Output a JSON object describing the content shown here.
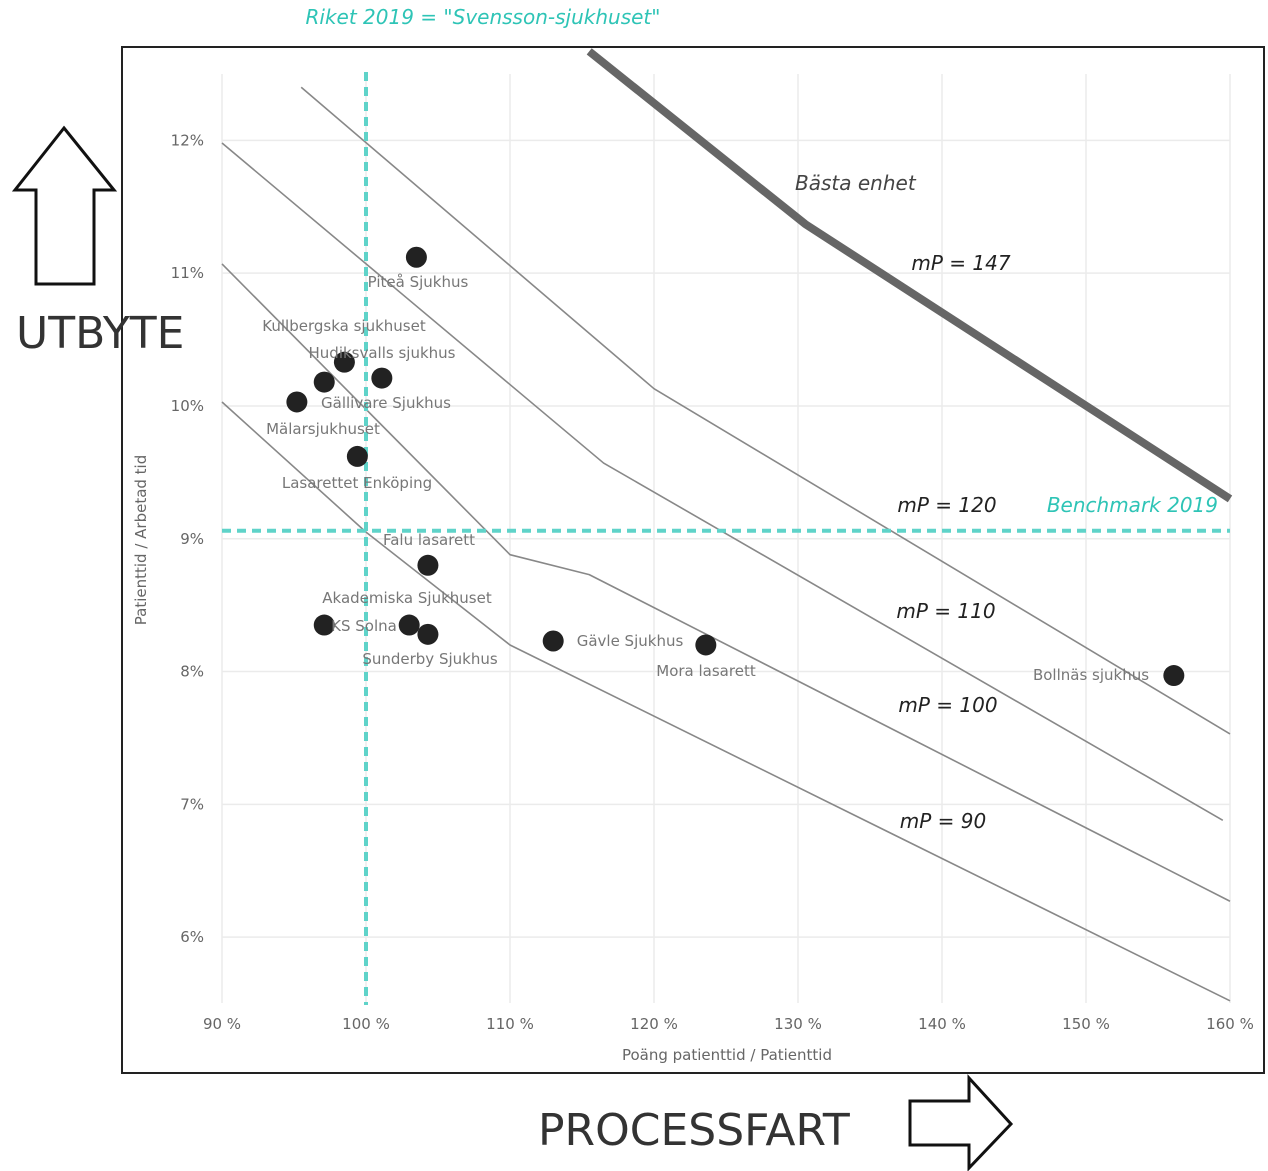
{
  "chart_data": {
    "type": "scatter",
    "xlabel": "Poäng patienttid / Patienttid",
    "ylabel": "Patienttid / Arbetad tid",
    "xlim": [
      90,
      160
    ],
    "ylim": [
      5.5,
      12.5
    ],
    "x_ticks": [
      90,
      100,
      110,
      120,
      130,
      140,
      150,
      160
    ],
    "x_tick_labels": [
      "90 %",
      "100 %",
      "110 %",
      "120 %",
      "130 %",
      "140 %",
      "150 %",
      "160 %"
    ],
    "y_ticks": [
      6,
      7,
      8,
      9,
      10,
      11,
      12
    ],
    "y_tick_labels": [
      "6%",
      "7%",
      "8%",
      "9%",
      "10%",
      "11%",
      "12%"
    ],
    "grid": true,
    "points": [
      {
        "name": "Piteå Sjukhus",
        "x": 103.5,
        "y": 11.12
      },
      {
        "name": "Kullbergska sjukhuset",
        "x": 98.5,
        "y": 10.33
      },
      {
        "name": "Hudiksvalls sjukhus",
        "x": 101.1,
        "y": 10.21
      },
      {
        "name": "Gällivare Sjukhus",
        "x": 97.1,
        "y": 10.18
      },
      {
        "name": "Mälarsjukhuset",
        "x": 95.2,
        "y": 10.03
      },
      {
        "name": "Lasarettet Enköping",
        "x": 99.4,
        "y": 9.62
      },
      {
        "name": "Falu lasarett",
        "x": 104.3,
        "y": 8.8
      },
      {
        "name": "Akademiska Sjukhuset",
        "x": 103.0,
        "y": 8.35
      },
      {
        "name": "KS Solna",
        "x": 97.1,
        "y": 8.35
      },
      {
        "name": "Sunderby Sjukhus",
        "x": 104.3,
        "y": 8.28
      },
      {
        "name": "Gävle Sjukhus",
        "x": 113.0,
        "y": 8.23
      },
      {
        "name": "Mora lasarett",
        "x": 123.6,
        "y": 8.2
      },
      {
        "name": "Bollnäs sjukhus",
        "x": 156.1,
        "y": 7.97
      }
    ],
    "reference_lines": {
      "vertical": {
        "x": 100,
        "label": "Riket 2019 = \"Svensson-sjukhuset\"",
        "color": "#5fd3c9"
      },
      "horizontal": {
        "y": 9.06,
        "label": "Benchmark 2019",
        "color": "#5fd3c9"
      }
    },
    "iso_curves": [
      {
        "label": "mP = 90",
        "points": [
          [
            90,
            10.03
          ],
          [
            100,
            9.05
          ],
          [
            110,
            8.2
          ],
          [
            160,
            5.52
          ]
        ]
      },
      {
        "label": "mP = 100",
        "points": [
          [
            90,
            11.07
          ],
          [
            110,
            8.88
          ],
          [
            115.5,
            8.73
          ],
          [
            160,
            6.27
          ]
        ]
      },
      {
        "label": "mP = 110",
        "points": [
          [
            90,
            11.98
          ],
          [
            116.5,
            9.57
          ],
          [
            159.5,
            6.88
          ]
        ]
      },
      {
        "label": "mP = 120",
        "points": [
          [
            95.5,
            12.4
          ],
          [
            120,
            10.13
          ],
          [
            160,
            7.53
          ]
        ]
      },
      {
        "label": "mP = 147",
        "points": [
          [
            115.5,
            12.67
          ],
          [
            130.5,
            11.37
          ],
          [
            160,
            9.3
          ]
        ],
        "bold": true
      }
    ],
    "curve_annotation": "Bästa enhet"
  },
  "decorations": {
    "y_concept": "UTBYTE",
    "x_concept": "PROCESSFART"
  }
}
